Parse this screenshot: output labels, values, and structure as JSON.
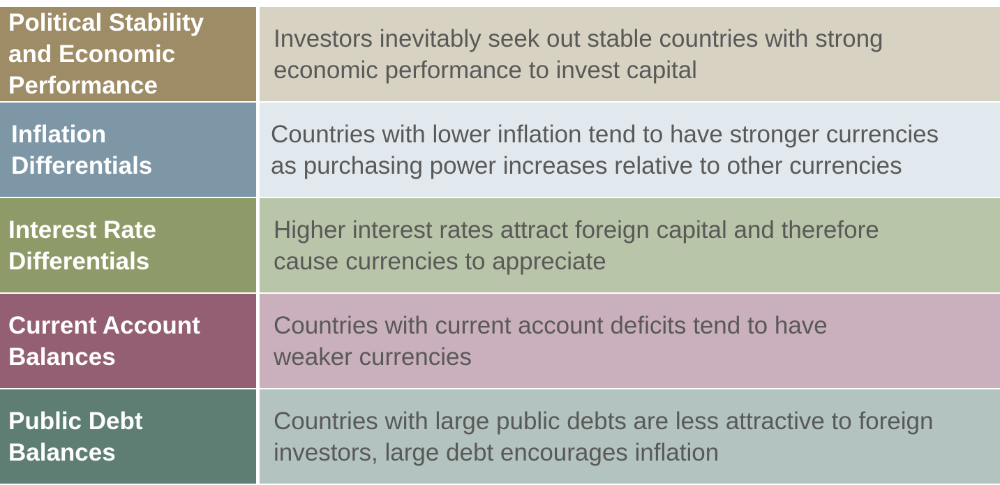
{
  "rows": [
    {
      "label": "Political Stability\nand Economic\nPerformance",
      "description": "Investors inevitably seek out stable countries with strong\neconomic performance to invest capital",
      "label_color": "#9E8C66",
      "desc_color": "#D8D2C2"
    },
    {
      "label": "Inflation\nDifferentials",
      "description": "Countries with lower inflation tend to have stronger currencies\nas purchasing power increases relative to other currencies",
      "label_color": "#7E97A6",
      "desc_color": "#E2E9EE"
    },
    {
      "label": "Interest Rate\nDifferentials",
      "description": "Higher interest rates attract foreign capital and therefore\ncause currencies to appreciate",
      "label_color": "#8E9A68",
      "desc_color": "#B8C5A8"
    },
    {
      "label": "Current Account\nBalances",
      "description": "Countries with current account deficits tend to have\nweaker currencies",
      "label_color": "#945F72",
      "desc_color": "#CAAFBD"
    },
    {
      "label": "Public Debt\nBalances",
      "description": "Countries with large public debts are less attractive to foreign\ninvestors, large debt encourages inflation",
      "label_color": "#5E7E74",
      "desc_color": "#B3C3BF"
    }
  ]
}
